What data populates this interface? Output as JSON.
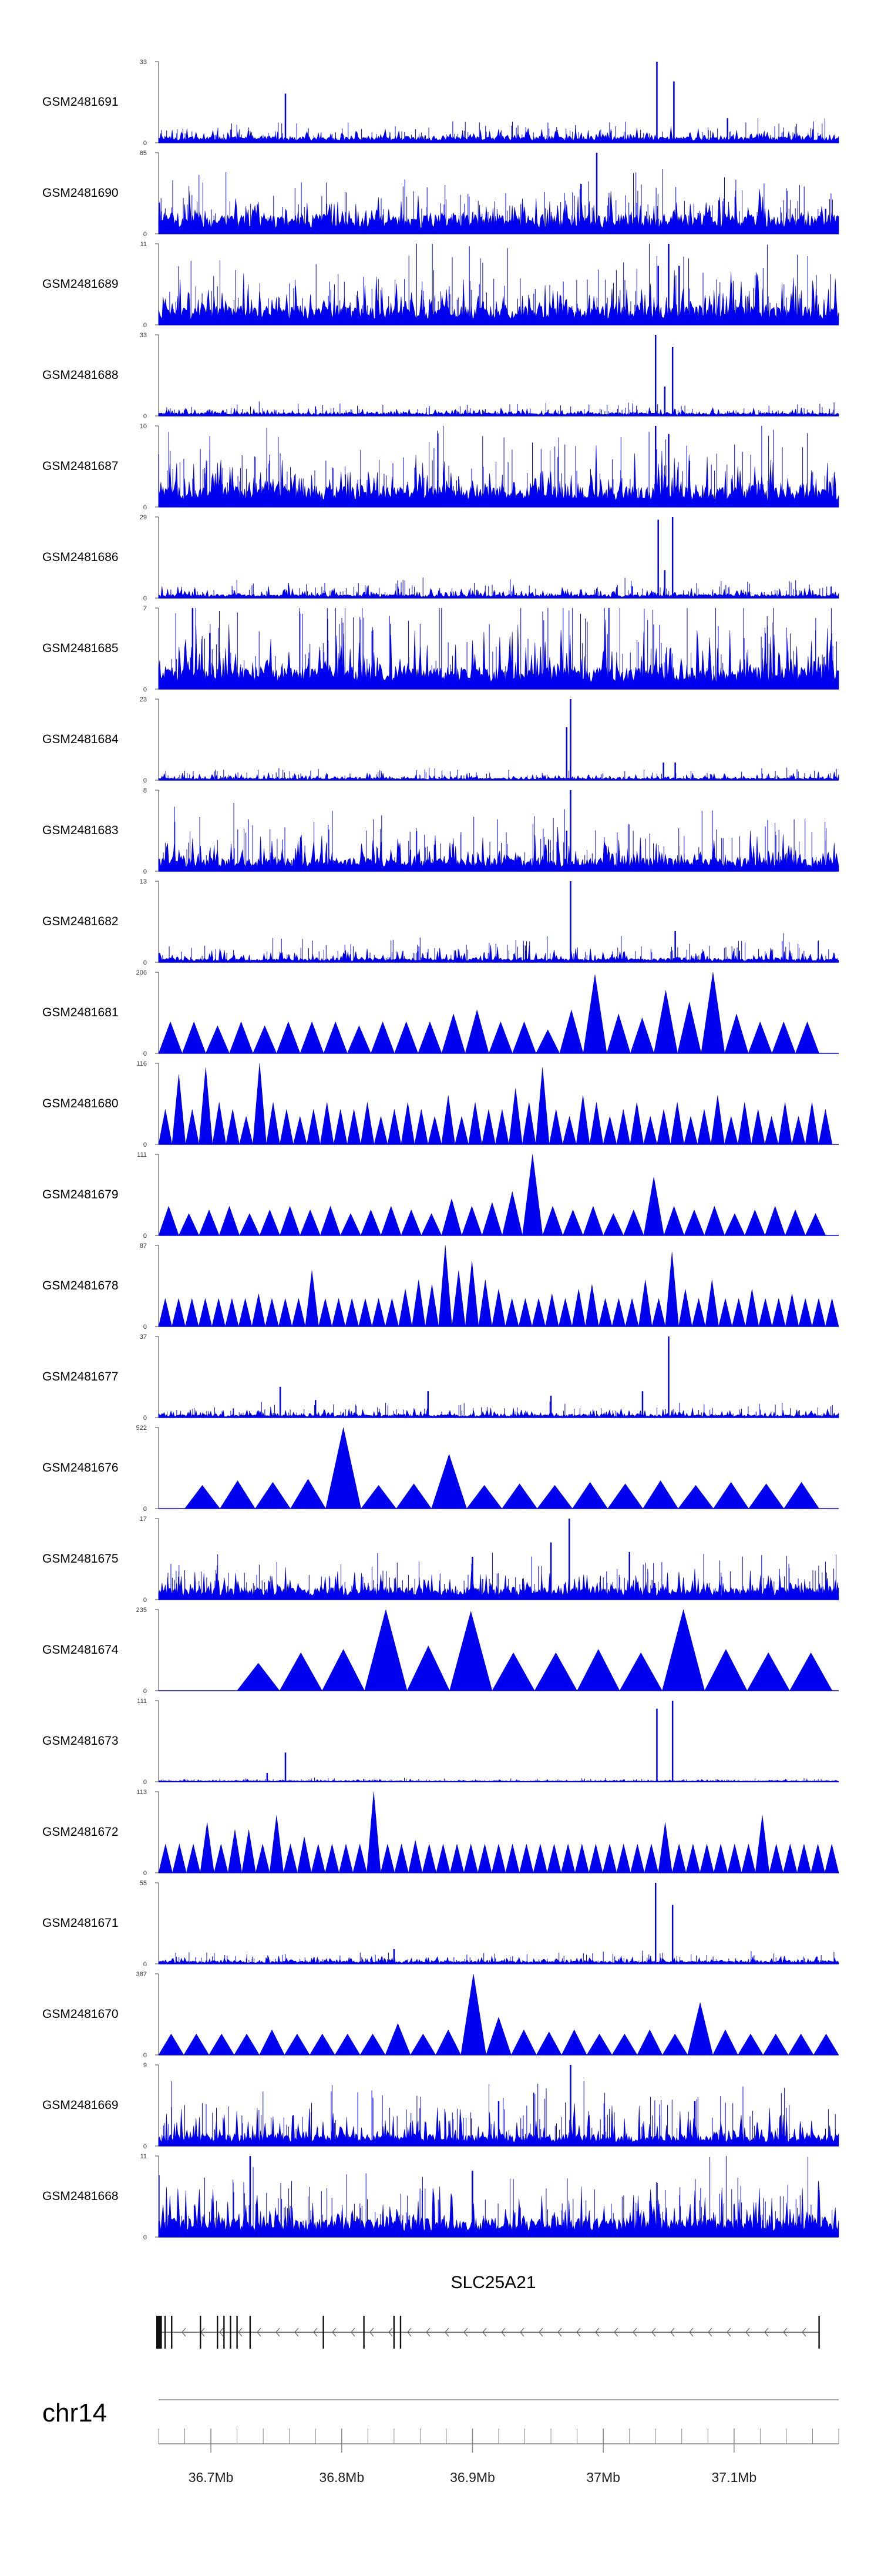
{
  "chart_data": {
    "type": "area",
    "title": "",
    "chromosome": "chr14",
    "xlabel": "",
    "x_range_mb": [
      36.66,
      37.18
    ],
    "x_ticks": [
      {
        "value": 36.7,
        "label": "36.7Mb"
      },
      {
        "value": 36.8,
        "label": "36.8Mb"
      },
      {
        "value": 36.9,
        "label": "36.9Mb"
      },
      {
        "value": 37.0,
        "label": "37Mb"
      },
      {
        "value": 37.1,
        "label": "37.1Mb"
      }
    ],
    "series": [
      {
        "name": "GSM2481691",
        "ymax": 33,
        "ymax_label": "33",
        "style": "bars",
        "baseline": 2,
        "noise": 5,
        "peaks": [
          [
            36.757,
            20
          ],
          [
            37.041,
            33
          ],
          [
            37.054,
            25
          ],
          [
            37.095,
            10
          ]
        ]
      },
      {
        "name": "GSM2481690",
        "ymax": 65,
        "ymax_label": "65",
        "style": "bars",
        "baseline": 12,
        "noise": 25,
        "peaks": [
          [
            36.995,
            65
          ],
          [
            36.983,
            40
          ],
          [
            37.17,
            20
          ]
        ]
      },
      {
        "name": "GSM2481689",
        "ymax": 11,
        "ymax_label": "11",
        "style": "bars",
        "baseline": 2,
        "noise": 6,
        "peaks": [
          [
            37.05,
            11
          ],
          [
            37.042,
            8
          ],
          [
            37.058,
            8
          ]
        ]
      },
      {
        "name": "GSM2481688",
        "ymax": 33,
        "ymax_label": "33",
        "style": "bars",
        "baseline": 1,
        "noise": 3,
        "peaks": [
          [
            37.04,
            33
          ],
          [
            37.053,
            28
          ],
          [
            37.047,
            12
          ]
        ]
      },
      {
        "name": "GSM2481687",
        "ymax": 10,
        "ymax_label": "10",
        "style": "bars",
        "baseline": 2,
        "noise": 6,
        "peaks": [
          [
            37.04,
            10
          ],
          [
            37.05,
            9
          ]
        ]
      },
      {
        "name": "GSM2481686",
        "ymax": 29,
        "ymax_label": "29",
        "style": "bars",
        "baseline": 1,
        "noise": 4,
        "peaks": [
          [
            37.042,
            28
          ],
          [
            37.053,
            29
          ],
          [
            37.047,
            10
          ]
        ]
      },
      {
        "name": "GSM2481685",
        "ymax": 7,
        "ymax_label": "7",
        "style": "bars",
        "baseline": 1.5,
        "noise": 5,
        "peaks": [
          [
            36.686,
            7
          ]
        ]
      },
      {
        "name": "GSM2481684",
        "ymax": 23,
        "ymax_label": "23",
        "style": "bars",
        "baseline": 0.5,
        "noise": 2,
        "peaks": [
          [
            36.975,
            23
          ],
          [
            36.972,
            15
          ],
          [
            37.046,
            5
          ],
          [
            37.055,
            5
          ]
        ]
      },
      {
        "name": "GSM2481683",
        "ymax": 8,
        "ymax_label": "8",
        "style": "bars",
        "baseline": 1,
        "noise": 3.5,
        "peaks": [
          [
            36.975,
            8
          ],
          [
            36.972,
            4
          ]
        ]
      },
      {
        "name": "GSM2481682",
        "ymax": 13,
        "ymax_label": "13",
        "style": "bars",
        "baseline": 0.5,
        "noise": 2.5,
        "peaks": [
          [
            36.975,
            13
          ],
          [
            37.055,
            5
          ]
        ]
      },
      {
        "name": "GSM2481681",
        "ymax": 206,
        "ymax_label": "206",
        "style": "triangles",
        "extent": [
          36.66,
          37.165
        ],
        "heights": [
          80,
          80,
          70,
          80,
          70,
          80,
          80,
          80,
          70,
          80,
          80,
          80,
          100,
          110,
          80,
          80,
          60,
          110,
          200,
          100,
          90,
          160,
          130,
          206,
          100,
          80,
          80,
          80
        ]
      },
      {
        "name": "GSM2481680",
        "ymax": 116,
        "ymax_label": "116",
        "style": "triangles",
        "extent": [
          36.66,
          37.175
        ],
        "heights": [
          50,
          100,
          50,
          110,
          60,
          50,
          40,
          116,
          60,
          50,
          40,
          50,
          60,
          50,
          50,
          60,
          40,
          50,
          60,
          50,
          40,
          70,
          40,
          60,
          50,
          50,
          80,
          60,
          110,
          50,
          40,
          70,
          60,
          40,
          50,
          60,
          40,
          50,
          60,
          40,
          50,
          70,
          40,
          60,
          50,
          40,
          60,
          40,
          60,
          50
        ]
      },
      {
        "name": "GSM2481679",
        "ymax": 111,
        "ymax_label": "111",
        "style": "triangles",
        "extent": [
          36.66,
          37.17
        ],
        "heights": [
          40,
          30,
          35,
          40,
          30,
          35,
          40,
          35,
          40,
          30,
          35,
          40,
          35,
          30,
          50,
          40,
          45,
          60,
          111,
          40,
          35,
          40,
          30,
          35,
          80,
          40,
          35,
          40,
          30,
          35,
          40,
          35,
          30
        ]
      },
      {
        "name": "GSM2481678",
        "ymax": 87,
        "ymax_label": "87",
        "style": "triangles",
        "extent": [
          36.66,
          37.18
        ],
        "heights": [
          30,
          30,
          30,
          30,
          30,
          30,
          30,
          35,
          30,
          30,
          30,
          60,
          30,
          30,
          30,
          30,
          30,
          30,
          40,
          50,
          45,
          87,
          60,
          70,
          50,
          40,
          30,
          30,
          30,
          35,
          30,
          40,
          45,
          30,
          30,
          30,
          50,
          30,
          80,
          40,
          30,
          50,
          30,
          30,
          40,
          30,
          30,
          35,
          30,
          30,
          30
        ]
      },
      {
        "name": "GSM2481677",
        "ymax": 37,
        "ymax_label": "37",
        "style": "bars",
        "baseline": 1,
        "noise": 4,
        "peaks": [
          [
            36.753,
            14
          ],
          [
            36.866,
            12
          ],
          [
            37.05,
            37
          ],
          [
            37.03,
            12
          ],
          [
            36.96,
            10
          ],
          [
            36.78,
            8
          ]
        ]
      },
      {
        "name": "GSM2481676",
        "ymax": 522,
        "ymax_label": "522",
        "style": "triangles",
        "extent": [
          36.68,
          37.165
        ],
        "heights": [
          150,
          180,
          170,
          190,
          522,
          150,
          160,
          350,
          150,
          160,
          150,
          170,
          160,
          180,
          150,
          170,
          160,
          170
        ]
      },
      {
        "name": "GSM2481675",
        "ymax": 17,
        "ymax_label": "17",
        "style": "bars",
        "baseline": 2,
        "noise": 5,
        "peaks": [
          [
            36.974,
            17
          ],
          [
            36.96,
            12
          ],
          [
            37.02,
            10
          ],
          [
            36.9,
            9
          ]
        ]
      },
      {
        "name": "GSM2481674",
        "ymax": 235,
        "ymax_label": "235",
        "style": "triangles",
        "extent": [
          36.72,
          37.175
        ],
        "heights": [
          80,
          110,
          120,
          235,
          130,
          230,
          110,
          110,
          120,
          110,
          235,
          120,
          110,
          110
        ]
      },
      {
        "name": "GSM2481673",
        "ymax": 111,
        "ymax_label": "111",
        "style": "bars",
        "baseline": 1,
        "noise": 3,
        "peaks": [
          [
            37.041,
            100
          ],
          [
            37.053,
            111
          ],
          [
            36.757,
            40
          ],
          [
            36.743,
            12
          ]
        ]
      },
      {
        "name": "GSM2481672",
        "ymax": 113,
        "ymax_label": "113",
        "style": "triangles",
        "extent": [
          36.66,
          37.18
        ],
        "heights": [
          40,
          40,
          40,
          70,
          40,
          60,
          60,
          40,
          80,
          40,
          50,
          40,
          40,
          40,
          40,
          113,
          40,
          40,
          45,
          40,
          40,
          40,
          40,
          40,
          40,
          40,
          40,
          40,
          40,
          40,
          40,
          40,
          40,
          40,
          40,
          40,
          70,
          40,
          40,
          40,
          40,
          40,
          40,
          80,
          40,
          40,
          40,
          40,
          40
        ]
      },
      {
        "name": "GSM2481671",
        "ymax": 55,
        "ymax_label": "55",
        "style": "bars",
        "baseline": 1.5,
        "noise": 5,
        "peaks": [
          [
            37.04,
            55
          ],
          [
            37.053,
            40
          ],
          [
            36.84,
            10
          ]
        ]
      },
      {
        "name": "GSM2481670",
        "ymax": 387,
        "ymax_label": "387",
        "style": "triangles",
        "extent": [
          36.66,
          37.18
        ],
        "heights": [
          100,
          100,
          100,
          100,
          120,
          100,
          100,
          100,
          100,
          150,
          100,
          120,
          387,
          180,
          120,
          110,
          120,
          100,
          100,
          120,
          100,
          250,
          120,
          100,
          100,
          100,
          100
        ]
      },
      {
        "name": "GSM2481669",
        "ymax": 9,
        "ymax_label": "9",
        "style": "bars",
        "baseline": 1,
        "noise": 4,
        "peaks": [
          [
            36.975,
            9
          ],
          [
            36.92,
            5
          ],
          [
            37.07,
            5
          ]
        ]
      },
      {
        "name": "GSM2481668",
        "ymax": 11,
        "ymax_label": "11",
        "style": "bars",
        "baseline": 2,
        "noise": 6,
        "peaks": [
          [
            36.73,
            11
          ],
          [
            36.9,
            9
          ]
        ]
      }
    ],
    "gene": {
      "name": "SLC25A21",
      "start_mb": 36.66,
      "end_mb": 37.165,
      "strand": "-",
      "exons_mb": [
        36.66,
        36.662,
        36.665,
        36.67,
        36.692,
        36.705,
        36.71,
        36.715,
        36.72,
        36.73,
        36.786,
        36.817,
        36.84,
        36.845,
        37.165
      ]
    }
  }
}
